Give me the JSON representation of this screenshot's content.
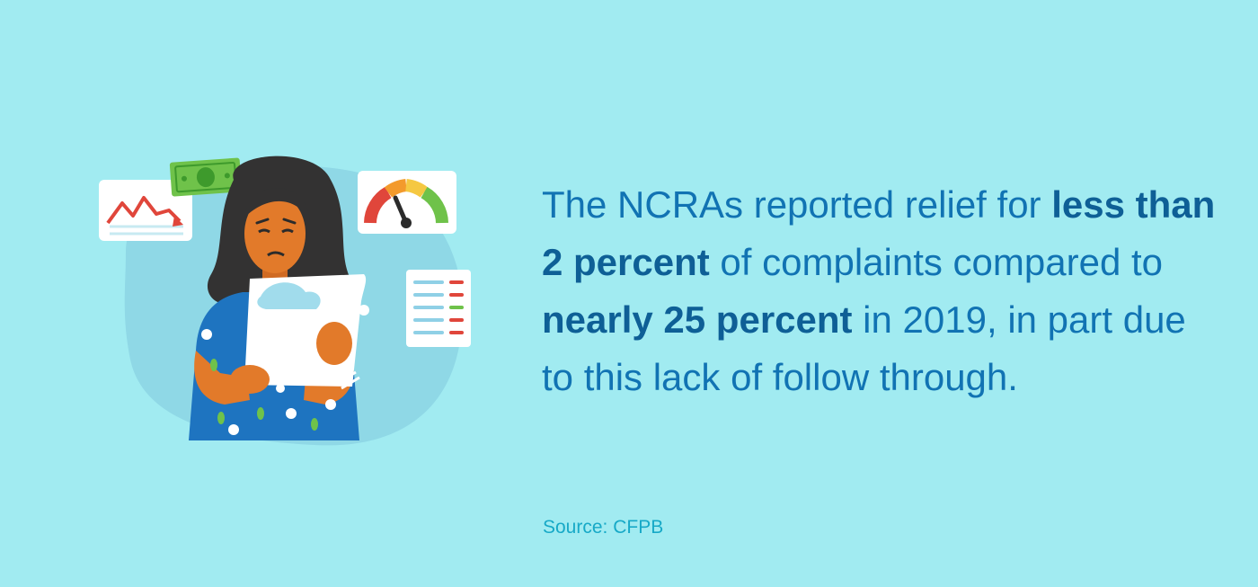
{
  "statement": {
    "line1_regular": "The NCRAs reported relief for ",
    "line1_bold": "less than",
    "line2_bold": "2 percent",
    "line2_regular": " of complaints compared to",
    "line3_bold": "nearly 25 percent",
    "line3_regular": " in 2019, in part due",
    "line4_regular": "to this lack of follow through."
  },
  "source": "Source: CFPB",
  "colors": {
    "background": "#a1ebf1",
    "text": "#1173b3",
    "source_text": "#17a9c7"
  },
  "icons": [
    "falling-chart-icon",
    "money-bill-icon",
    "credit-score-gauge-icon",
    "report-list-icon"
  ]
}
